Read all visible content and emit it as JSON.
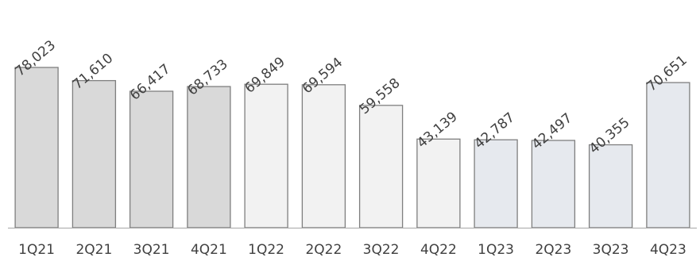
{
  "chart_data": {
    "type": "bar",
    "categories": [
      "1Q21",
      "2Q21",
      "3Q21",
      "4Q21",
      "1Q22",
      "2Q22",
      "3Q22",
      "4Q22",
      "1Q23",
      "2Q23",
      "3Q23",
      "4Q23"
    ],
    "values": [
      78023,
      71610,
      66417,
      68733,
      69849,
      69594,
      59558,
      43139,
      42787,
      42497,
      40355,
      70651
    ],
    "value_labels": [
      "78,023",
      "71,610",
      "66,417",
      "68,733",
      "69,849",
      "69,594",
      "59,558",
      "43,139",
      "42,787",
      "42,497",
      "40,355",
      "70,651"
    ],
    "ylim": [
      0,
      78023
    ],
    "grid": false,
    "legend": "none",
    "bar_colors": [
      "#d9d9d9",
      "#d9d9d9",
      "#d9d9d9",
      "#d9d9d9",
      "#f2f2f2",
      "#f2f2f2",
      "#f2f2f2",
      "#f2f2f2",
      "#e6e9ee",
      "#e6e9ee",
      "#e6e9ee",
      "#e6e9ee"
    ],
    "bar_outline": "#7f7f7f",
    "axis_color": "#a6a6a6"
  }
}
